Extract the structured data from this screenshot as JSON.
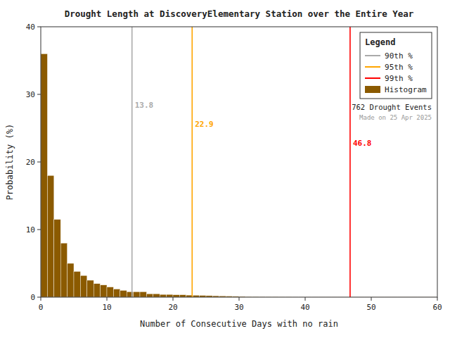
{
  "chart_data": {
    "type": "histogram",
    "title": "Drought Length at DiscoveryElementary Station over the Entire Year",
    "x_label": "Number of Consecutive Days with no rain",
    "y_label": "Probability (%)",
    "xlim": [
      0,
      60
    ],
    "ylim": [
      0,
      40
    ],
    "xticks": [
      0,
      10,
      20,
      30,
      40,
      50,
      60
    ],
    "yticks": [
      0,
      10,
      20,
      30,
      40
    ],
    "grid": false,
    "legend": "upper-right",
    "legend_title": "Legend",
    "bins": [
      0,
      1,
      2,
      3,
      4,
      5,
      6,
      7,
      8,
      9,
      10,
      11,
      12,
      13,
      14,
      15,
      16,
      17,
      18,
      19,
      20,
      21,
      22,
      23,
      24,
      25,
      26,
      27,
      28,
      29,
      30,
      31,
      32,
      33,
      34,
      35,
      36,
      37,
      38,
      39,
      40,
      41,
      42,
      43,
      44,
      45,
      46,
      47,
      48,
      49,
      50,
      51,
      52,
      53,
      54,
      55,
      56,
      57,
      58,
      59,
      60
    ],
    "series": [
      {
        "name": "Histogram",
        "color": "#8B5A00",
        "values": [
          36.0,
          18.0,
          11.5,
          8.0,
          5.0,
          3.8,
          3.2,
          2.5,
          2.0,
          1.8,
          1.5,
          1.2,
          1.0,
          0.8,
          0.8,
          0.8,
          0.5,
          0.5,
          0.4,
          0.4,
          0.35,
          0.35,
          0.3,
          0.28,
          0.25,
          0.22,
          0.2,
          0.18,
          0.15,
          0.12,
          0.1,
          0.08,
          0.07,
          0.06,
          0.05,
          0.05,
          0.04,
          0.04,
          0.03,
          0.03,
          0.03,
          0.03,
          0.02,
          0.02,
          0.02,
          0.02,
          0.02,
          0.02,
          0.02,
          0.02,
          0.02,
          0.02,
          0.02,
          0.02,
          0.02,
          0.02,
          0.02,
          0.02,
          0.02,
          0.02
        ]
      }
    ],
    "vlines": [
      {
        "name": "90th %",
        "value": 13.8,
        "color": "#aaaaaa"
      },
      {
        "name": "95th %",
        "value": 22.9,
        "color": "#FFA500"
      },
      {
        "name": "99th %",
        "value": 46.8,
        "color": "#FF0000"
      }
    ],
    "annotations": [
      "762 Drought Events",
      "Made on 25 Apr 2025"
    ]
  }
}
